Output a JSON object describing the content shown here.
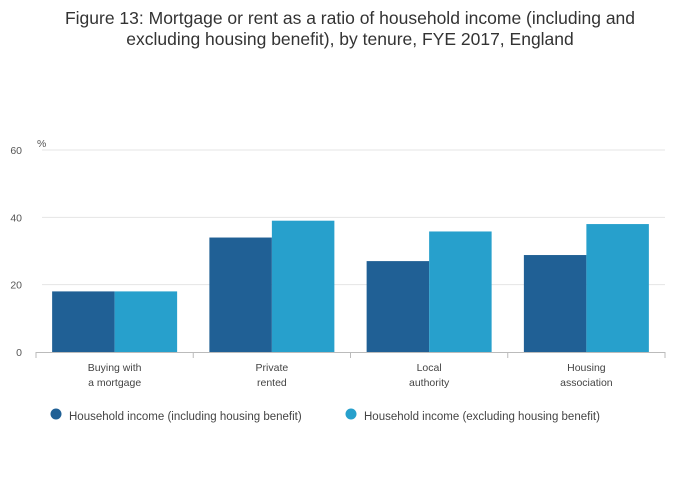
{
  "chart_data": {
    "type": "bar",
    "title_lines": [
      "Figure 13: Mortgage or rent as a ratio of household income (including and",
      "excluding housing benefit), by tenure, FYE 2017, England"
    ],
    "ylabel": "%",
    "ylim": [
      0,
      60
    ],
    "yticks": [
      0,
      20,
      40,
      60
    ],
    "grid": true,
    "legend_position": "bottom-left",
    "categories": [
      [
        "Buying with",
        "a mortgage"
      ],
      [
        "Private",
        "rented"
      ],
      [
        "Local",
        "authority"
      ],
      [
        "Housing",
        "association"
      ]
    ],
    "series": [
      {
        "name": "Household income (including housing benefit)",
        "color": "#206095",
        "values": [
          18,
          34,
          27,
          28.8
        ]
      },
      {
        "name": "Household income (excluding housing benefit)",
        "color": "#27a0cc",
        "values": [
          18,
          39,
          35.8,
          38
        ]
      }
    ]
  }
}
